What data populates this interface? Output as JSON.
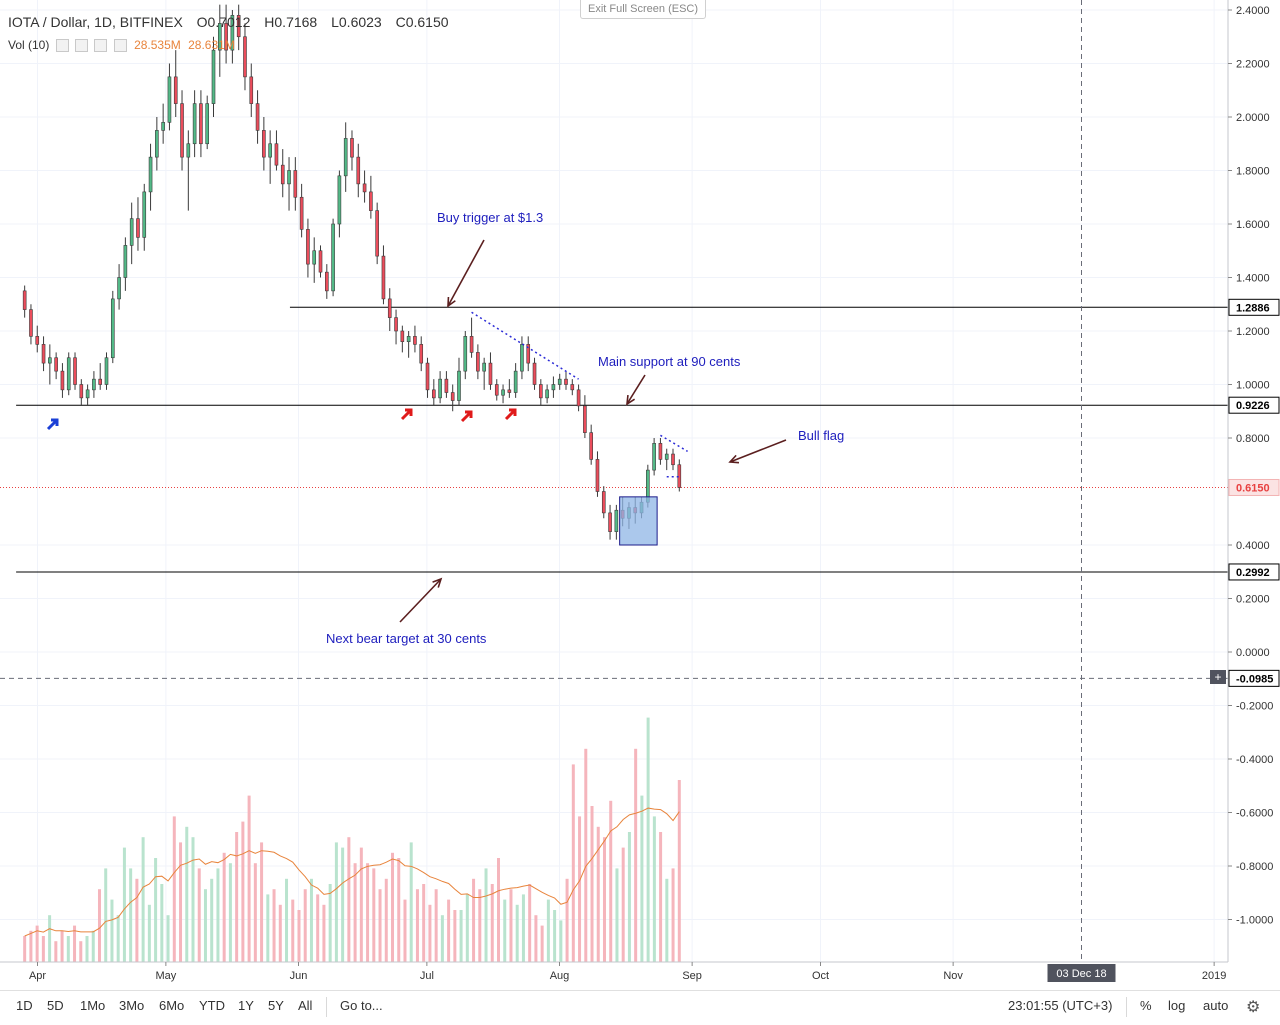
{
  "header": {
    "symbol": "IOTA / Dollar, 1D, BITFINEX",
    "open": "O0.7012",
    "high": "H0.7168",
    "low": "L0.6023",
    "close": "C0.6150",
    "vol_label": "Vol (10)",
    "vol_value_1": "28.535M",
    "vol_value_2": "28.631M",
    "exit_fullscreen": "Exit Full Screen (ESC)"
  },
  "colors": {
    "up": "#53b987",
    "down": "#eb4d5c",
    "vol_up": "#b9e3ce",
    "vol_down": "#f5b5bc",
    "vol_ma": "#e8843c",
    "annotation_text": "#1d1dbd",
    "arrow_brown": "#5b1f1f",
    "box_fill": "#8fb5e6",
    "dotted_blue": "#2b2bd6",
    "current_price_red": "#e84141"
  },
  "chart_data": {
    "type": "candlestick",
    "title": "IOTA / Dollar, 1D, BITFINEX",
    "ylim": [
      -1.15,
      2.42
    ],
    "y_ticks": [
      "2.4000",
      "2.2000",
      "2.0000",
      "1.8000",
      "1.6000",
      "1.4000",
      "1.2000",
      "1.0000",
      "0.8000",
      "0.4000",
      "0.2000",
      "0.0000",
      "-0.2000",
      "-0.4000",
      "-0.6000",
      "-0.8000",
      "-1.0000"
    ],
    "y_tick_values": [
      2.4,
      2.2,
      2.0,
      1.8,
      1.6,
      1.4,
      1.2,
      1.0,
      0.8,
      0.4,
      0.2,
      0.0,
      -0.2,
      -0.4,
      -0.6,
      -0.8,
      -1.0
    ],
    "x_ticks": [
      "Apr",
      "May",
      "Jun",
      "Jul",
      "Aug",
      "Sep",
      "Oct",
      "Nov",
      "2019"
    ],
    "x_tick_days": [
      3,
      33,
      64,
      94,
      125,
      156,
      186,
      217,
      278
    ],
    "date_label": "03 Dec 18",
    "date_label_day": 247,
    "price_labels": [
      {
        "text": "1.2886",
        "value": 1.2886
      },
      {
        "text": "0.9226",
        "value": 0.9226
      },
      {
        "text": "0.6150",
        "value": 0.615
      },
      {
        "text": "0.2992",
        "value": 0.2992
      },
      {
        "text": "-0.0985",
        "value": -0.0985
      }
    ],
    "horizontal_lines": [
      {
        "value": 1.2886,
        "from_day": 62
      },
      {
        "value": 0.9226,
        "from_day": -2
      },
      {
        "value": 0.2992,
        "from_day": -2
      }
    ],
    "current_price": 0.615,
    "crosshair_value": -0.0985,
    "annotations": [
      {
        "text": "Buy trigger at $1.3",
        "day": 110,
        "value": 1.6
      },
      {
        "text": "Main support at 90 cents",
        "day": 157,
        "value": 1.08
      },
      {
        "text": "Bull flag",
        "day": 187,
        "value": 0.78
      },
      {
        "text": "Next bear target at 30 cents",
        "day": 94,
        "value": 0.03
      }
    ],
    "candles_ohlc": [
      [
        1.35,
        1.37,
        1.25,
        1.28
      ],
      [
        1.28,
        1.3,
        1.15,
        1.18
      ],
      [
        1.18,
        1.22,
        1.12,
        1.15
      ],
      [
        1.15,
        1.18,
        1.05,
        1.08
      ],
      [
        1.08,
        1.15,
        1.0,
        1.1
      ],
      [
        1.1,
        1.12,
        1.02,
        1.05
      ],
      [
        1.05,
        1.08,
        0.95,
        0.98
      ],
      [
        0.98,
        1.12,
        0.96,
        1.1
      ],
      [
        1.1,
        1.12,
        0.98,
        1.0
      ],
      [
        1.0,
        1.02,
        0.92,
        0.95
      ],
      [
        0.95,
        1.0,
        0.92,
        0.98
      ],
      [
        0.98,
        1.05,
        0.95,
        1.02
      ],
      [
        1.02,
        1.08,
        0.98,
        1.0
      ],
      [
        1.0,
        1.12,
        0.98,
        1.1
      ],
      [
        1.1,
        1.35,
        1.08,
        1.32
      ],
      [
        1.32,
        1.45,
        1.28,
        1.4
      ],
      [
        1.4,
        1.55,
        1.35,
        1.52
      ],
      [
        1.52,
        1.68,
        1.45,
        1.62
      ],
      [
        1.62,
        1.7,
        1.5,
        1.55
      ],
      [
        1.55,
        1.75,
        1.5,
        1.72
      ],
      [
        1.72,
        1.9,
        1.65,
        1.85
      ],
      [
        1.85,
        2.0,
        1.8,
        1.95
      ],
      [
        1.95,
        2.05,
        1.9,
        1.98
      ],
      [
        1.98,
        2.2,
        1.95,
        2.15
      ],
      [
        2.15,
        2.25,
        2.0,
        2.05
      ],
      [
        2.05,
        2.1,
        1.8,
        1.85
      ],
      [
        1.85,
        1.95,
        1.65,
        1.9
      ],
      [
        1.9,
        2.1,
        1.85,
        2.05
      ],
      [
        2.05,
        2.1,
        1.85,
        1.9
      ],
      [
        1.9,
        2.08,
        1.88,
        2.05
      ],
      [
        2.05,
        2.3,
        2.0,
        2.25
      ],
      [
        2.25,
        2.42,
        2.15,
        2.35
      ],
      [
        2.35,
        2.42,
        2.2,
        2.25
      ],
      [
        2.25,
        2.4,
        2.2,
        2.38
      ],
      [
        2.38,
        2.42,
        2.25,
        2.3
      ],
      [
        2.3,
        2.35,
        2.1,
        2.15
      ],
      [
        2.15,
        2.2,
        2.0,
        2.05
      ],
      [
        2.05,
        2.1,
        1.9,
        1.95
      ],
      [
        1.95,
        2.0,
        1.8,
        1.85
      ],
      [
        1.85,
        1.95,
        1.75,
        1.9
      ],
      [
        1.9,
        1.95,
        1.8,
        1.82
      ],
      [
        1.82,
        1.88,
        1.7,
        1.75
      ],
      [
        1.75,
        1.85,
        1.65,
        1.8
      ],
      [
        1.8,
        1.85,
        1.65,
        1.7
      ],
      [
        1.7,
        1.75,
        1.55,
        1.58
      ],
      [
        1.58,
        1.62,
        1.4,
        1.45
      ],
      [
        1.45,
        1.55,
        1.38,
        1.5
      ],
      [
        1.5,
        1.52,
        1.4,
        1.42
      ],
      [
        1.42,
        1.45,
        1.32,
        1.35
      ],
      [
        1.35,
        1.62,
        1.33,
        1.6
      ],
      [
        1.6,
        1.8,
        1.55,
        1.78
      ],
      [
        1.78,
        1.98,
        1.72,
        1.92
      ],
      [
        1.92,
        1.95,
        1.8,
        1.85
      ],
      [
        1.85,
        1.9,
        1.7,
        1.75
      ],
      [
        1.75,
        1.8,
        1.68,
        1.72
      ],
      [
        1.72,
        1.78,
        1.62,
        1.65
      ],
      [
        1.65,
        1.68,
        1.45,
        1.48
      ],
      [
        1.48,
        1.52,
        1.3,
        1.32
      ],
      [
        1.32,
        1.36,
        1.2,
        1.25
      ],
      [
        1.25,
        1.28,
        1.15,
        1.2
      ],
      [
        1.2,
        1.22,
        1.12,
        1.16
      ],
      [
        1.16,
        1.2,
        1.1,
        1.18
      ],
      [
        1.18,
        1.22,
        1.12,
        1.15
      ],
      [
        1.15,
        1.18,
        1.05,
        1.08
      ],
      [
        1.08,
        1.1,
        0.95,
        0.98
      ],
      [
        0.98,
        1.02,
        0.92,
        0.95
      ],
      [
        0.95,
        1.05,
        0.93,
        1.02
      ],
      [
        1.02,
        1.05,
        0.95,
        0.97
      ],
      [
        0.97,
        1.0,
        0.9,
        0.94
      ],
      [
        0.94,
        1.1,
        0.92,
        1.05
      ],
      [
        1.05,
        1.2,
        1.02,
        1.18
      ],
      [
        1.18,
        1.25,
        1.1,
        1.12
      ],
      [
        1.12,
        1.15,
        1.02,
        1.05
      ],
      [
        1.05,
        1.1,
        0.98,
        1.08
      ],
      [
        1.08,
        1.12,
        0.98,
        1.0
      ],
      [
        1.0,
        1.02,
        0.94,
        0.96
      ],
      [
        0.96,
        1.0,
        0.93,
        0.98
      ],
      [
        0.98,
        1.02,
        0.95,
        0.97
      ],
      [
        0.97,
        1.08,
        0.95,
        1.05
      ],
      [
        1.05,
        1.18,
        1.02,
        1.15
      ],
      [
        1.15,
        1.18,
        1.05,
        1.08
      ],
      [
        1.08,
        1.1,
        0.98,
        1.0
      ],
      [
        1.0,
        1.02,
        0.92,
        0.95
      ],
      [
        0.95,
        1.0,
        0.93,
        0.98
      ],
      [
        0.98,
        1.03,
        0.95,
        1.0
      ],
      [
        1.0,
        1.04,
        0.98,
        1.02
      ],
      [
        1.02,
        1.05,
        0.98,
        1.0
      ],
      [
        1.0,
        1.02,
        0.96,
        0.98
      ],
      [
        0.98,
        1.0,
        0.9,
        0.92
      ],
      [
        0.92,
        0.96,
        0.8,
        0.82
      ],
      [
        0.82,
        0.85,
        0.7,
        0.72
      ],
      [
        0.72,
        0.75,
        0.58,
        0.6
      ],
      [
        0.6,
        0.62,
        0.5,
        0.52
      ],
      [
        0.52,
        0.55,
        0.42,
        0.45
      ],
      [
        0.45,
        0.55,
        0.42,
        0.53
      ],
      [
        0.53,
        0.58,
        0.47,
        0.5
      ],
      [
        0.5,
        0.56,
        0.46,
        0.54
      ],
      [
        0.54,
        0.58,
        0.48,
        0.52
      ],
      [
        0.52,
        0.58,
        0.5,
        0.56
      ],
      [
        0.56,
        0.7,
        0.54,
        0.68
      ],
      [
        0.68,
        0.8,
        0.66,
        0.78
      ],
      [
        0.78,
        0.8,
        0.7,
        0.72
      ],
      [
        0.72,
        0.76,
        0.68,
        0.74
      ],
      [
        0.74,
        0.76,
        0.68,
        0.7
      ],
      [
        0.7,
        0.72,
        0.6,
        0.615
      ]
    ],
    "volume_values": [
      5,
      6,
      7,
      5,
      9,
      4,
      6,
      5,
      7,
      4,
      5,
      6,
      14,
      18,
      12,
      9,
      22,
      18,
      16,
      24,
      11,
      20,
      15,
      9,
      28,
      23,
      26,
      24,
      18,
      14,
      16,
      18,
      21,
      19,
      25,
      27,
      32,
      19,
      23,
      13,
      14,
      11,
      16,
      12,
      10,
      14,
      16,
      13,
      11,
      15,
      23,
      22,
      24,
      19,
      22,
      19,
      18,
      14,
      16,
      21,
      20,
      12,
      23,
      14,
      15,
      11,
      14,
      9,
      12,
      10,
      10,
      13,
      16,
      14,
      18,
      15,
      20,
      12,
      14,
      11,
      13,
      15,
      9,
      7,
      12,
      10,
      8,
      16,
      38,
      28,
      41,
      30,
      26,
      24,
      31,
      18,
      22,
      25,
      41,
      32,
      47,
      28,
      25,
      16,
      18,
      35
    ]
  },
  "bottombar": {
    "ranges": [
      "1D",
      "5D",
      "1Mo",
      "3Mo",
      "6Mo",
      "YTD",
      "1Y",
      "5Y",
      "All"
    ],
    "goto": "Go to...",
    "clock": "23:01:55 (UTC+3)",
    "percent": "%",
    "log": "log",
    "auto": "auto"
  }
}
